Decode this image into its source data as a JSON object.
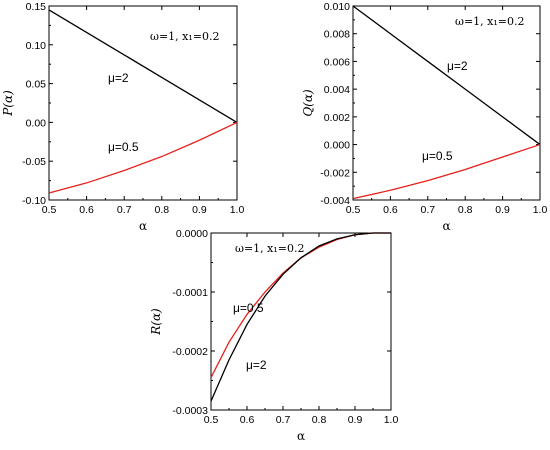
{
  "chart_data": [
    {
      "type": "line",
      "ylabel": "P(α)",
      "xlabel": "α",
      "annotation": "ω=1, x₁=0.2",
      "xlim": [
        0.5,
        1.0
      ],
      "ylim": [
        -0.1,
        0.15
      ],
      "xticks": [
        "0.5",
        "0.6",
        "0.7",
        "0.8",
        "0.9",
        "1.0"
      ],
      "yticks": [
        "-0.10",
        "-0.05",
        "0.00",
        "0.05",
        "0.10",
        "0.15"
      ],
      "grid": false,
      "series": [
        {
          "name": "μ=2",
          "color": "#000000",
          "x": [
            0.5,
            0.6,
            0.7,
            0.8,
            0.9,
            1.0
          ],
          "y": [
            0.145,
            0.116,
            0.087,
            0.058,
            0.029,
            0.0
          ]
        },
        {
          "name": "μ=0.5",
          "color": "#e8201c",
          "x": [
            0.5,
            0.6,
            0.7,
            0.8,
            0.9,
            1.0
          ],
          "y": [
            -0.091,
            -0.078,
            -0.062,
            -0.044,
            -0.023,
            0.0
          ]
        }
      ]
    },
    {
      "type": "line",
      "ylabel": "Q(α)",
      "xlabel": "α",
      "annotation": "ω=1, x₁=0.2",
      "xlim": [
        0.5,
        1.0
      ],
      "ylim": [
        -0.004,
        0.01
      ],
      "xticks": [
        "0.5",
        "0.6",
        "0.7",
        "0.8",
        "0.9",
        "1.0"
      ],
      "yticks": [
        "-0.004",
        "-0.002",
        "0.000",
        "0.002",
        "0.004",
        "0.006",
        "0.008",
        "0.010"
      ],
      "grid": false,
      "series": [
        {
          "name": "μ=2",
          "color": "#000000",
          "x": [
            0.5,
            0.6,
            0.7,
            0.8,
            0.9,
            1.0
          ],
          "y": [
            0.01,
            0.008,
            0.006,
            0.004,
            0.002,
            0.0
          ]
        },
        {
          "name": "μ=0.5",
          "color": "#e8201c",
          "x": [
            0.5,
            0.6,
            0.7,
            0.8,
            0.9,
            1.0
          ],
          "y": [
            -0.0039,
            -0.0033,
            -0.0026,
            -0.0018,
            -0.0009,
            0.0
          ]
        }
      ]
    },
    {
      "type": "line",
      "ylabel": "R(α)",
      "xlabel": "α",
      "annotation": "ω=1, x₁=0.2",
      "xlim": [
        0.5,
        1.0
      ],
      "ylim": [
        -0.0003,
        0.0
      ],
      "xticks": [
        "0.5",
        "0.6",
        "0.7",
        "0.8",
        "0.9",
        "1.0"
      ],
      "yticks": [
        "-0.0003",
        "-0.0002",
        "-0.0001",
        "0.0000"
      ],
      "grid": false,
      "series": [
        {
          "name": "μ=0.5",
          "color": "#e8201c",
          "x": [
            0.5,
            0.55,
            0.6,
            0.65,
            0.7,
            0.75,
            0.8,
            0.85,
            0.9,
            0.95,
            1.0
          ],
          "y": [
            -0.000245,
            -0.000185,
            -0.000138,
            -0.0001,
            -6.8e-05,
            -4.2e-05,
            -2.4e-05,
            -1.1e-05,
            -3e-06,
            0.0,
            0.0
          ]
        },
        {
          "name": "μ=2",
          "color": "#000000",
          "x": [
            0.5,
            0.55,
            0.6,
            0.65,
            0.7,
            0.75,
            0.8,
            0.85,
            0.9,
            0.95,
            1.0
          ],
          "y": [
            -0.000285,
            -0.000215,
            -0.000155,
            -0.000107,
            -7e-05,
            -4.2e-05,
            -2.2e-05,
            -1e-05,
            -3e-06,
            0.0,
            0.0
          ]
        }
      ]
    }
  ]
}
